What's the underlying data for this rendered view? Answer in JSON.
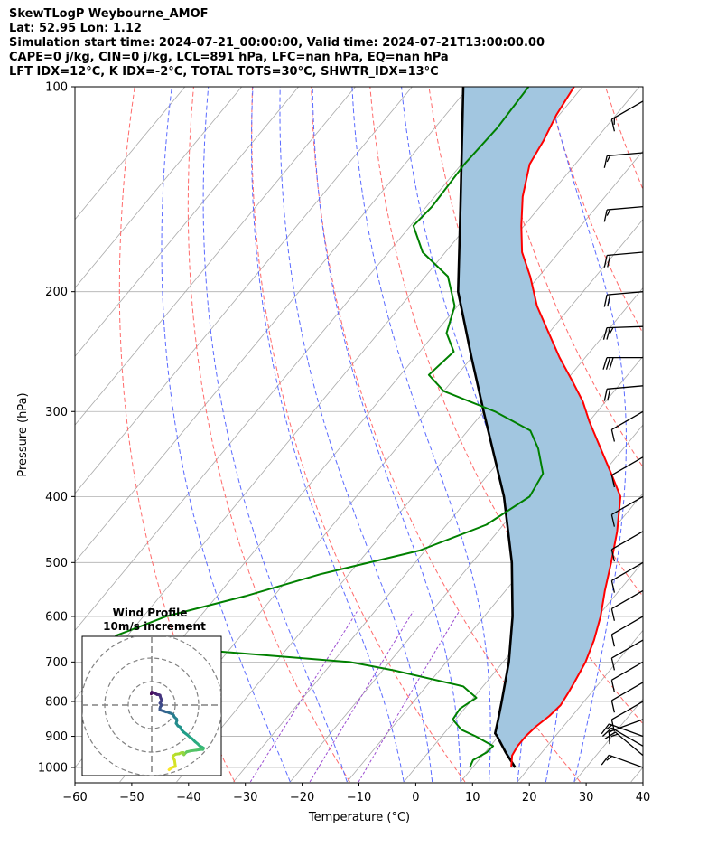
{
  "header": {
    "line1": "SkewTLogP Weybourne_AMOF",
    "line2": "Lat: 52.95   Lon: 1.12",
    "line3": "Simulation start time: 2024-07-21_00:00:00, Valid time: 2024-07-21T13:00:00.00",
    "line4": "CAPE=0 j/kg, CIN=0 j/kg, LCL=891 hPa, LFC=nan hPa, EQ=nan hPa",
    "line5": "LFT IDX=12°C, K IDX=-2°C, TOTAL TOTS=30°C, SHWTR_IDX=13°C"
  },
  "chart_data": {
    "type": "skewt-logp",
    "xlabel": "Temperature (°C)",
    "ylabel": "Pressure (hPa)",
    "xlim": [
      -60,
      40
    ],
    "ylim": [
      1050,
      100
    ],
    "xticks": [
      "−60",
      "−50",
      "−40",
      "−30",
      "−20",
      "−10",
      "0",
      "10",
      "20",
      "30",
      "40"
    ],
    "xtick_values": [
      -60,
      -50,
      -40,
      -30,
      -20,
      -10,
      0,
      10,
      20,
      30,
      40
    ],
    "yticks": [
      "1000",
      "900",
      "800",
      "700",
      "600",
      "500",
      "400",
      "300",
      "200",
      "100"
    ],
    "ytick_values": [
      1000,
      900,
      800,
      700,
      600,
      500,
      400,
      300,
      200,
      100
    ],
    "grid": true,
    "temperature_profile": {
      "color": "#ff0000",
      "points": [
        [
          1000,
          16.8
        ],
        [
          960,
          15.2
        ],
        [
          930,
          14.8
        ],
        [
          900,
          14.8
        ],
        [
          870,
          15.2
        ],
        [
          840,
          16.0
        ],
        [
          810,
          16.4
        ],
        [
          780,
          16.0
        ],
        [
          750,
          15.5
        ],
        [
          700,
          14.5
        ],
        [
          650,
          12.8
        ],
        [
          600,
          10.5
        ],
        [
          550,
          7.5
        ],
        [
          500,
          4.5
        ],
        [
          450,
          1.0
        ],
        [
          400,
          -3.5
        ],
        [
          370,
          -8.5
        ],
        [
          340,
          -14.0
        ],
        [
          310,
          -20.0
        ],
        [
          290,
          -24.0
        ],
        [
          270,
          -29.0
        ],
        [
          250,
          -34.5
        ],
        [
          230,
          -40.0
        ],
        [
          210,
          -46.0
        ],
        [
          190,
          -51.5
        ],
        [
          175,
          -56.5
        ],
        [
          160,
          -60.5
        ],
        [
          145,
          -64.5
        ],
        [
          130,
          -68.0
        ],
        [
          120,
          -69.0
        ],
        [
          110,
          -70.5
        ],
        [
          100,
          -71.5
        ]
      ]
    },
    "dewpoint_profile": {
      "color": "#008000",
      "points": [
        [
          1000,
          9.5
        ],
        [
          975,
          9.0
        ],
        [
          950,
          10.3
        ],
        [
          930,
          10.5
        ],
        [
          900,
          6.0
        ],
        [
          880,
          2.5
        ],
        [
          850,
          -0.5
        ],
        [
          820,
          -0.8
        ],
        [
          790,
          0.5
        ],
        [
          760,
          -3.5
        ],
        [
          720,
          -18.0
        ],
        [
          700,
          -27.0
        ],
        [
          675,
          -52.0
        ],
        [
          650,
          -72.0
        ],
        [
          640,
          -72.0
        ],
        [
          620,
          -69.0
        ],
        [
          600,
          -66.0
        ],
        [
          560,
          -55.0
        ],
        [
          520,
          -45.0
        ],
        [
          480,
          -31.0
        ],
        [
          440,
          -23.0
        ],
        [
          400,
          -19.5
        ],
        [
          370,
          -20.5
        ],
        [
          340,
          -25.0
        ],
        [
          320,
          -29.0
        ],
        [
          300,
          -38.0
        ],
        [
          280,
          -50.0
        ],
        [
          265,
          -55.0
        ],
        [
          245,
          -54.0
        ],
        [
          230,
          -58.0
        ],
        [
          210,
          -60.5
        ],
        [
          190,
          -66.0
        ],
        [
          175,
          -74.0
        ],
        [
          160,
          -79.5
        ],
        [
          150,
          -79.0
        ],
        [
          130,
          -79.5
        ],
        [
          115,
          -79.0
        ],
        [
          100,
          -79.5
        ]
      ]
    },
    "parcel_profile": {
      "color": "#000000",
      "points": [
        [
          1000,
          17.5
        ],
        [
          950,
          13.6
        ],
        [
          900,
          9.8
        ],
        [
          891,
          9.0
        ],
        [
          850,
          7.5
        ],
        [
          800,
          5.5
        ],
        [
          700,
          1.0
        ],
        [
          600,
          -5.0
        ],
        [
          500,
          -13.0
        ],
        [
          400,
          -24.0
        ],
        [
          300,
          -40.0
        ],
        [
          250,
          -50.0
        ],
        [
          200,
          -62.0
        ],
        [
          150,
          -74.0
        ],
        [
          100,
          -91.0
        ]
      ]
    },
    "shading": {
      "color": "#a2c6e0",
      "between": "parcel and temperature"
    },
    "reference_lines": {
      "isotherms": {
        "color": "#a9a9a9"
      },
      "dry_adiabats": {
        "color": "#ff6a6a"
      },
      "moist_adiabats": {
        "color": "#5a6aff"
      },
      "mixing_ratio": {
        "color": "#9b4bd1"
      }
    },
    "wind_barbs": {
      "pressures": [
        1000,
        960,
        930,
        900,
        850,
        800,
        750,
        700,
        650,
        600,
        550,
        500,
        450,
        400,
        350,
        300,
        275,
        250,
        225,
        200,
        175,
        150,
        125,
        105
      ],
      "speeds_kt": [
        18,
        18,
        18,
        18,
        13,
        13,
        13,
        13,
        13,
        13,
        13,
        13,
        13,
        13,
        13,
        13,
        23,
        33,
        28,
        23,
        23,
        18,
        18,
        18
      ],
      "directions_deg": [
        290,
        310,
        300,
        290,
        250,
        240,
        240,
        240,
        240,
        240,
        240,
        240,
        240,
        240,
        240,
        240,
        265,
        270,
        268,
        265,
        265,
        265,
        265,
        240
      ]
    },
    "hodograph": {
      "title": "Wind Profile",
      "subtitle": "10m/s increment",
      "rings_ms": [
        10,
        20,
        30
      ],
      "colormap": "viridis",
      "u": [
        -0.2,
        -0.1,
        0.0,
        0.6,
        1.1,
        1.6,
        2.2,
        3.0,
        3.5,
        3.6,
        3.8,
        4.2,
        4.0,
        3.5,
        4.3,
        3.7,
        3.5,
        3.5,
        4.6,
        5.3,
        6.0,
        6.8,
        7.5,
        8.1,
        8.6,
        9.0,
        9.3,
        9.6,
        10.6,
        10.7,
        10.4,
        11.2,
        12.1,
        12.7,
        13.6,
        14.7,
        16.1,
        17.2,
        18.5,
        19.6,
        20.5,
        21.5,
        22.1,
        21.8,
        20.9,
        18.9,
        16.6,
        14.9,
        14.1,
        13.8,
        13.7,
        13.6,
        13.4,
        12.5,
        11.7,
        10.2,
        9.3,
        9.0,
        9.7,
        10.1,
        8.7,
        7.7,
        7.4,
        7.5
      ],
      "v": [
        -4.7,
        -5.1,
        -5.5,
        -5.3,
        -5.0,
        -4.9,
        -4.5,
        -4.4,
        -4.2,
        -3.8,
        -3.1,
        -2.3,
        -1.5,
        -0.8,
        0.0,
        0.7,
        1.4,
        2.1,
        2.4,
        2.6,
        2.9,
        3.0,
        3.3,
        3.5,
        3.7,
        4.0,
        4.3,
        5.0,
        5.9,
        6.6,
        7.8,
        8.9,
        9.3,
        10.5,
        11.5,
        12.3,
        13.5,
        14.3,
        15.6,
        16.5,
        17.4,
        17.9,
        18.3,
        18.9,
        18.9,
        19.2,
        19.5,
        19.9,
        20.6,
        21.0,
        21.1,
        20.7,
        20.2,
        20.3,
        20.7,
        20.9,
        21.5,
        22.3,
        23.4,
        26.1,
        26.5,
        27.3,
        27.5,
        27.4
      ]
    }
  }
}
